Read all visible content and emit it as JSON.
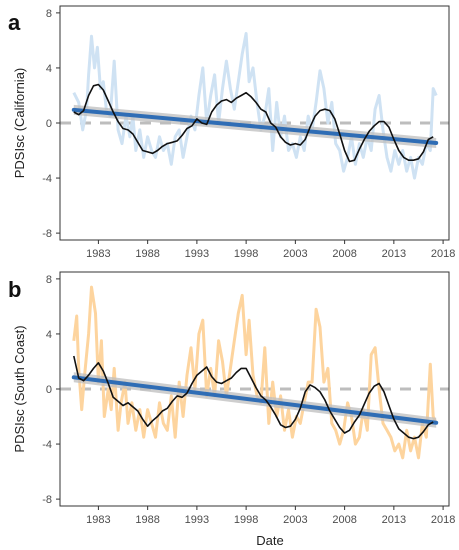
{
  "figure": {
    "xlabel": "Date"
  },
  "chart_data": [
    {
      "type": "line",
      "panel_label": "a",
      "ylabel": "PDSIsc (California)",
      "xlabel": "",
      "xticks": [
        1983,
        1988,
        1993,
        1998,
        2003,
        2008,
        2013,
        2018
      ],
      "yticks": [
        -8,
        -4,
        0,
        4,
        8
      ],
      "xlim": [
        1979.1,
        2018.6
      ],
      "ylim": [
        -8.5,
        8.5
      ],
      "grid": false,
      "legend": "none",
      "colors": {
        "raw": "#cfe2f3",
        "smooth": "#111111",
        "trend": "#2f6db5",
        "band": "#bdbdbd",
        "zero": "#bdbdbd"
      },
      "series": [
        {
          "role": "raw",
          "x": [
            1980.5,
            1981.0,
            1981.4,
            1981.8,
            1982.0,
            1982.3,
            1982.6,
            1982.9,
            1983.2,
            1983.5,
            1983.8,
            1984.2,
            1984.6,
            1985.0,
            1985.4,
            1985.8,
            1986.2,
            1986.5,
            1986.8,
            1987.2,
            1987.6,
            1988.0,
            1988.4,
            1988.8,
            1989.2,
            1989.6,
            1990.0,
            1990.4,
            1990.8,
            1991.2,
            1991.6,
            1992.0,
            1992.4,
            1992.8,
            1993.2,
            1993.6,
            1994.0,
            1994.4,
            1994.8,
            1995.2,
            1995.6,
            1996.0,
            1996.4,
            1996.8,
            1997.2,
            1997.6,
            1998.0,
            1998.3,
            1998.7,
            1999.1,
            1999.5,
            1999.9,
            2000.3,
            2000.7,
            2001.1,
            2001.5,
            2001.9,
            2002.3,
            2002.7,
            2003.1,
            2003.5,
            2003.9,
            2004.3,
            2004.7,
            2005.1,
            2005.5,
            2005.9,
            2006.3,
            2006.7,
            2007.1,
            2007.5,
            2007.9,
            2008.3,
            2008.7,
            2009.1,
            2009.5,
            2009.9,
            2010.3,
            2010.7,
            2011.1,
            2011.5,
            2011.9,
            2012.3,
            2012.7,
            2013.1,
            2013.5,
            2013.9,
            2014.3,
            2014.7,
            2015.1,
            2015.5,
            2015.9,
            2016.3,
            2016.7,
            2017.0,
            2017.3
          ],
          "y": [
            2.2,
            1.5,
            -0.5,
            1.0,
            3.5,
            6.3,
            4.0,
            5.5,
            2.5,
            3.0,
            1.0,
            0.5,
            4.5,
            -0.5,
            -1.5,
            0.5,
            -1.0,
            0.5,
            -2.0,
            -0.5,
            -2.5,
            -1.0,
            -2.0,
            -2.5,
            -1.0,
            -2.0,
            -1.5,
            -3.0,
            -1.0,
            -0.5,
            -2.5,
            -1.0,
            0.5,
            -0.5,
            2.0,
            4.0,
            0.0,
            2.0,
            3.5,
            0.0,
            2.5,
            4.5,
            2.5,
            1.0,
            3.0,
            5.0,
            6.5,
            3.0,
            4.0,
            1.5,
            -0.5,
            0.5,
            2.5,
            -2.0,
            1.5,
            -1.0,
            0.5,
            -2.0,
            -1.5,
            -2.5,
            -1.0,
            -2.0,
            0.5,
            -0.5,
            1.5,
            3.8,
            2.5,
            0.0,
            1.5,
            -1.5,
            -2.0,
            -3.5,
            -2.5,
            -1.0,
            -3.0,
            -1.5,
            -2.5,
            -1.0,
            -2.0,
            1.0,
            2.0,
            -0.5,
            -2.5,
            -3.5,
            -2.0,
            -3.0,
            -2.0,
            -3.5,
            -2.5,
            -4.0,
            -2.5,
            -3.0,
            -1.5,
            -2.0,
            2.5,
            2.0
          ]
        },
        {
          "role": "smooth",
          "x": [
            1980.5,
            1981.0,
            1981.5,
            1982.0,
            1982.5,
            1983.0,
            1983.5,
            1984.0,
            1984.5,
            1985.0,
            1985.5,
            1986.0,
            1986.5,
            1987.0,
            1987.5,
            1988.0,
            1988.5,
            1989.0,
            1989.5,
            1990.0,
            1990.5,
            1991.0,
            1991.5,
            1992.0,
            1992.5,
            1993.0,
            1993.5,
            1994.0,
            1994.5,
            1995.0,
            1995.5,
            1996.0,
            1996.5,
            1997.0,
            1997.5,
            1998.0,
            1998.5,
            1999.0,
            1999.5,
            2000.0,
            2000.5,
            2001.0,
            2001.5,
            2002.0,
            2002.5,
            2003.0,
            2003.5,
            2004.0,
            2004.5,
            2005.0,
            2005.5,
            2006.0,
            2006.5,
            2007.0,
            2007.5,
            2008.0,
            2008.5,
            2009.0,
            2009.5,
            2010.0,
            2010.5,
            2011.0,
            2011.5,
            2012.0,
            2012.5,
            2013.0,
            2013.5,
            2014.0,
            2014.5,
            2015.0,
            2015.5,
            2016.0,
            2016.5,
            2017.0
          ],
          "y": [
            0.8,
            0.6,
            0.9,
            2.0,
            2.7,
            2.8,
            2.4,
            1.6,
            0.8,
            0.1,
            -0.4,
            -0.5,
            -0.8,
            -1.4,
            -2.0,
            -2.1,
            -2.2,
            -2.0,
            -1.7,
            -1.5,
            -1.4,
            -1.3,
            -0.9,
            -0.4,
            -0.2,
            0.3,
            0.0,
            -0.1,
            0.8,
            1.3,
            1.6,
            1.7,
            1.5,
            1.8,
            2.0,
            2.2,
            1.9,
            1.5,
            1.0,
            0.8,
            0.0,
            -0.3,
            -1.0,
            -1.4,
            -1.6,
            -1.5,
            -1.6,
            -1.2,
            -0.3,
            0.5,
            0.9,
            1.0,
            0.9,
            0.3,
            -0.8,
            -2.0,
            -2.8,
            -2.7,
            -1.9,
            -1.2,
            -0.6,
            -0.2,
            0.1,
            0.1,
            -0.3,
            -1.2,
            -2.0,
            -2.5,
            -2.7,
            -2.7,
            -2.6,
            -2.1,
            -1.2,
            -1.0
          ]
        },
        {
          "role": "trend",
          "x": [
            1980.5,
            2017.3
          ],
          "y": [
            0.95,
            -1.45
          ]
        }
      ]
    },
    {
      "type": "line",
      "panel_label": "b",
      "ylabel": "PDSIsc (South Coast)",
      "xlabel": "Date",
      "xticks": [
        1983,
        1988,
        1993,
        1998,
        2003,
        2008,
        2013,
        2018
      ],
      "yticks": [
        -8,
        -4,
        0,
        4,
        8
      ],
      "xlim": [
        1979.1,
        2018.6
      ],
      "ylim": [
        -8.5,
        8.5
      ],
      "grid": false,
      "legend": "none",
      "colors": {
        "raw": "#fdd49e",
        "smooth": "#111111",
        "trend": "#2f6db5",
        "band": "#bdbdbd",
        "zero": "#bdbdbd"
      },
      "series": [
        {
          "role": "raw",
          "x": [
            1980.5,
            1980.8,
            1981.0,
            1981.3,
            1981.6,
            1982.0,
            1982.3,
            1982.7,
            1983.0,
            1983.3,
            1983.6,
            1984.0,
            1984.3,
            1984.6,
            1985.0,
            1985.3,
            1985.7,
            1986.0,
            1986.4,
            1986.8,
            1987.2,
            1987.6,
            1988.0,
            1988.4,
            1988.8,
            1989.2,
            1989.6,
            1990.0,
            1990.4,
            1990.8,
            1991.2,
            1991.6,
            1992.0,
            1992.4,
            1992.8,
            1993.2,
            1993.6,
            1994.0,
            1994.4,
            1994.8,
            1995.2,
            1995.6,
            1996.0,
            1996.4,
            1996.8,
            1997.2,
            1997.6,
            1998.0,
            1998.3,
            1998.7,
            1999.1,
            1999.5,
            1999.9,
            2000.3,
            2000.7,
            2001.1,
            2001.5,
            2001.9,
            2002.3,
            2002.7,
            2003.1,
            2003.5,
            2003.9,
            2004.3,
            2004.7,
            2005.1,
            2005.5,
            2005.9,
            2006.3,
            2006.7,
            2007.1,
            2007.5,
            2007.9,
            2008.3,
            2008.7,
            2009.1,
            2009.5,
            2009.9,
            2010.3,
            2010.7,
            2011.1,
            2011.5,
            2011.9,
            2012.3,
            2012.7,
            2013.1,
            2013.5,
            2013.9,
            2014.3,
            2014.7,
            2015.1,
            2015.5,
            2015.9,
            2016.3,
            2016.7,
            2017.0,
            2017.3
          ],
          "y": [
            3.5,
            5.3,
            1.5,
            -1.5,
            1.0,
            4.0,
            7.4,
            5.5,
            0.5,
            3.5,
            -2.0,
            0.0,
            -1.5,
            1.5,
            -3.0,
            -1.0,
            0.5,
            -2.5,
            -1.0,
            -3.0,
            -1.5,
            -3.5,
            -1.5,
            -2.5,
            -3.5,
            -1.0,
            -2.5,
            -3.0,
            -0.5,
            -3.5,
            0.5,
            -2.0,
            1.0,
            3.0,
            0.0,
            4.0,
            5.0,
            -0.5,
            1.5,
            -0.5,
            3.5,
            2.0,
            -0.5,
            1.5,
            3.5,
            5.5,
            6.8,
            2.5,
            5.0,
            1.0,
            -0.5,
            -1.0,
            3.0,
            -2.5,
            0.5,
            -2.0,
            -0.5,
            -3.0,
            -1.5,
            -3.5,
            -2.0,
            -2.5,
            -1.0,
            0.5,
            0.5,
            5.8,
            4.5,
            0.5,
            1.5,
            -2.5,
            -3.0,
            -4.0,
            -3.0,
            -1.0,
            -2.0,
            -4.0,
            -3.5,
            -1.5,
            -3.0,
            2.5,
            3.0,
            0.0,
            -2.5,
            -3.0,
            -3.5,
            -4.5,
            -4.0,
            -5.0,
            -3.0,
            -4.5,
            -3.5,
            -5.0,
            -2.5,
            -3.5,
            1.8,
            -2.0,
            -2.5
          ]
        },
        {
          "role": "smooth",
          "x": [
            1980.5,
            1981.0,
            1981.5,
            1982.0,
            1982.5,
            1983.0,
            1983.5,
            1984.0,
            1984.5,
            1985.0,
            1985.5,
            1986.0,
            1986.5,
            1987.0,
            1987.5,
            1988.0,
            1988.5,
            1989.0,
            1989.5,
            1990.0,
            1990.5,
            1991.0,
            1991.5,
            1992.0,
            1992.5,
            1993.0,
            1993.5,
            1994.0,
            1994.5,
            1995.0,
            1995.5,
            1996.0,
            1996.5,
            1997.0,
            1997.5,
            1998.0,
            1998.5,
            1999.0,
            1999.5,
            2000.0,
            2000.5,
            2001.0,
            2001.5,
            2002.0,
            2002.5,
            2003.0,
            2003.5,
            2004.0,
            2004.5,
            2005.0,
            2005.5,
            2006.0,
            2006.5,
            2007.0,
            2007.5,
            2008.0,
            2008.5,
            2009.0,
            2009.5,
            2010.0,
            2010.5,
            2011.0,
            2011.5,
            2012.0,
            2012.5,
            2013.0,
            2013.5,
            2014.0,
            2014.5,
            2015.0,
            2015.5,
            2016.0,
            2016.5,
            2017.0
          ],
          "y": [
            2.4,
            0.8,
            0.6,
            1.0,
            1.5,
            1.9,
            1.3,
            0.4,
            -0.6,
            -0.9,
            -1.2,
            -1.0,
            -1.3,
            -1.6,
            -2.2,
            -2.7,
            -2.3,
            -2.0,
            -1.6,
            -1.4,
            -0.9,
            -0.5,
            -0.6,
            -0.3,
            0.4,
            1.0,
            1.3,
            1.6,
            0.9,
            0.5,
            0.4,
            0.6,
            0.8,
            1.2,
            1.5,
            1.5,
            0.8,
            0.1,
            -0.5,
            -0.8,
            -1.3,
            -1.9,
            -2.6,
            -2.8,
            -2.7,
            -2.2,
            -1.4,
            -0.2,
            0.3,
            0.1,
            -0.2,
            -0.8,
            -1.6,
            -2.2,
            -2.8,
            -3.2,
            -3.0,
            -2.4,
            -1.9,
            -1.1,
            -0.3,
            0.2,
            0.4,
            -0.2,
            -1.2,
            -2.2,
            -2.9,
            -3.2,
            -3.5,
            -3.6,
            -3.5,
            -3.1,
            -2.6,
            -2.4
          ]
        },
        {
          "role": "trend",
          "x": [
            1980.5,
            2017.3
          ],
          "y": [
            0.85,
            -2.45
          ]
        }
      ]
    }
  ]
}
